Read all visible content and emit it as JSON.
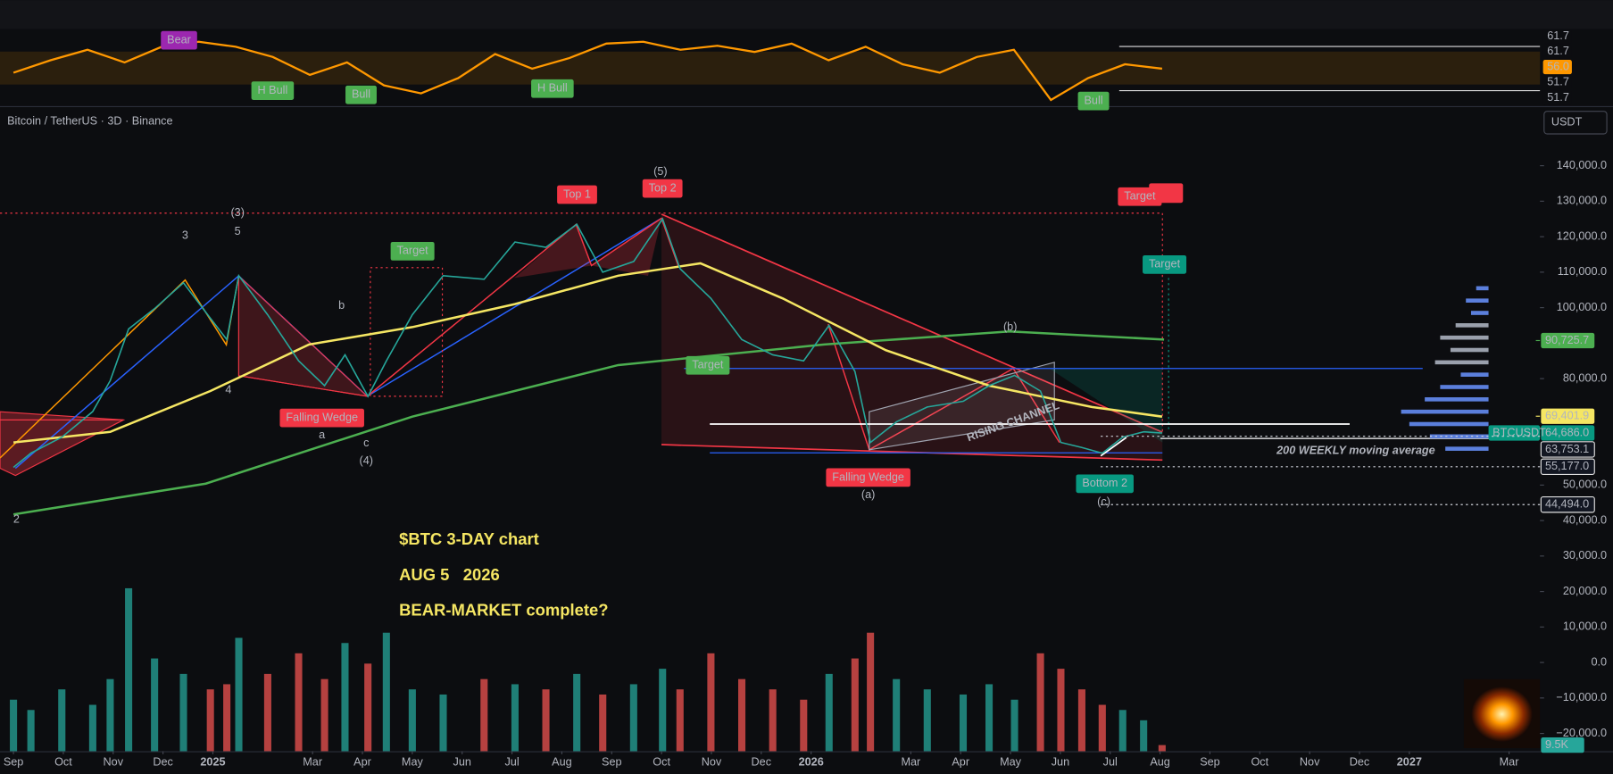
{
  "header": {
    "symbol": "Bitcoin / TetherUS · 3D · Binance",
    "currency": "USDT"
  },
  "chart_data": {
    "type": "line",
    "xlim": [
      -0.27,
      30.62
    ],
    "xticks": [
      {
        "value": 0,
        "label": "Sep"
      },
      {
        "value": 1,
        "label": "Oct"
      },
      {
        "value": 2,
        "label": "Nov"
      },
      {
        "value": 3,
        "label": "Dec"
      },
      {
        "value": 4,
        "label": "2025"
      },
      {
        "value": 6,
        "label": "Mar"
      },
      {
        "value": 7,
        "label": "Apr"
      },
      {
        "value": 8,
        "label": "May"
      },
      {
        "value": 9,
        "label": "Jun"
      },
      {
        "value": 10,
        "label": "Jul"
      },
      {
        "value": 11,
        "label": "Aug"
      },
      {
        "value": 12,
        "label": "Sep"
      },
      {
        "value": 13,
        "label": "Oct"
      },
      {
        "value": 14,
        "label": "Nov"
      },
      {
        "value": 15,
        "label": "Dec"
      },
      {
        "value": 16,
        "label": "2026"
      },
      {
        "value": 18,
        "label": "Mar"
      },
      {
        "value": 19,
        "label": "Apr"
      },
      {
        "value": 20,
        "label": "May"
      },
      {
        "value": 21,
        "label": "Jun"
      },
      {
        "value": 22,
        "label": "Jul"
      },
      {
        "value": 23,
        "label": "Aug"
      },
      {
        "value": 24,
        "label": "Sep"
      },
      {
        "value": 25,
        "label": "Oct"
      },
      {
        "value": 26,
        "label": "Nov"
      },
      {
        "value": 27,
        "label": "Dec"
      },
      {
        "value": 28,
        "label": "2027"
      },
      {
        "value": 30,
        "label": "Mar"
      }
    ],
    "ylim": [
      -25000,
      156500
    ],
    "yticks": [
      {
        "value": 140000,
        "label": "140,000.0"
      },
      {
        "value": 130000,
        "label": "130,000.0"
      },
      {
        "value": 120000,
        "label": "120,000.0"
      },
      {
        "value": 110000,
        "label": "110,000.0"
      },
      {
        "value": 100000,
        "label": "100,000.0"
      },
      {
        "value": 80000,
        "label": "80,000.0"
      },
      {
        "value": 50000,
        "label": "50,000.0"
      },
      {
        "value": 40000,
        "label": "40,000.0"
      },
      {
        "value": 30000,
        "label": "30,000.0"
      },
      {
        "value": 20000,
        "label": "20,000.0"
      },
      {
        "value": 10000,
        "label": "10,000.0"
      },
      {
        "value": 0,
        "label": "0.0"
      },
      {
        "value": -10000,
        "label": "−10,000.0"
      },
      {
        "value": -20000,
        "label": "−20,000.0"
      }
    ],
    "series": [
      {
        "name": "BTCUSDT",
        "color": "#26a69a",
        "x": [
          0,
          0.35,
          0.97,
          1.59,
          1.94,
          2.31,
          2.83,
          3.41,
          3.95,
          4.28,
          4.52,
          5.1,
          5.72,
          6.24,
          6.65,
          7.11,
          7.48,
          8.0,
          8.62,
          9.44,
          10.06,
          10.68,
          11.3,
          11.82,
          12.44,
          13.02,
          13.37,
          13.99,
          14.61,
          15.23,
          15.85,
          16.36,
          16.88,
          17.19,
          17.71,
          18.33,
          19.05,
          19.57,
          20.08,
          20.6,
          21.01,
          21.43,
          21.84,
          22.25,
          22.67,
          23.04
        ],
        "values": [
          55000,
          59000,
          63500,
          70700,
          79400,
          94000,
          99700,
          107000,
          97000,
          91000,
          109000,
          98000,
          85000,
          78000,
          86700,
          75000,
          85000,
          98000,
          109000,
          108000,
          118500,
          117000,
          123500,
          110000,
          113000,
          125000,
          111000,
          102600,
          91000,
          86700,
          85000,
          95000,
          82000,
          62000,
          67800,
          72000,
          73600,
          78000,
          80900,
          76500,
          62000,
          60600,
          59000,
          63500,
          65000,
          64686
        ]
      },
      {
        "color": "#f5e663",
        "x": [
          0,
          1.94,
          3.95,
          5.93,
          8.0,
          10.06,
          12.13,
          13.78,
          15.43,
          17.5,
          19.57,
          21.63,
          23.04
        ],
        "values": [
          62000,
          65000,
          76500,
          89600,
          94500,
          101000,
          109000,
          112500,
          102600,
          88000,
          78000,
          72000,
          69300
        ]
      },
      {
        "name": "200 WEEKLY moving average",
        "color": "#4caf50",
        "x": [
          0,
          3.86,
          8.0,
          12.13,
          16.26,
          19.98,
          23.08
        ],
        "values": [
          41700,
          50400,
          69300,
          83800,
          89600,
          93300,
          91000
        ]
      }
    ],
    "volume": {
      "y2lim": [
        0,
        1000000
      ],
      "up_color": "#26a69a",
      "down_color": "#ef5350",
      "values": [
        80000,
        64000,
        96000,
        72000,
        112000,
        253000,
        144000,
        120000,
        96000,
        104000,
        176000,
        120000,
        152000,
        112000,
        168000,
        136000,
        184000,
        96000,
        88000,
        112000,
        104000,
        96000,
        120000,
        88000,
        104000,
        128000,
        96000,
        152000,
        112000,
        96000,
        80000,
        120000,
        144000,
        184000,
        112000,
        96000,
        88000,
        104000,
        80000,
        152000,
        128000,
        96000,
        72000,
        64000,
        48000,
        9500
      ],
      "badge": {
        "value": 9500,
        "label": "9.5K"
      }
    },
    "price_badges": [
      {
        "value": 90725.7,
        "label": "90,725.7",
        "color": "#4caf50"
      },
      {
        "value": 69401.9,
        "label": "69,401.9",
        "color": "#f5e663"
      },
      {
        "value": 64686,
        "label": "64,686.0",
        "color": "#089981"
      },
      {
        "value": 63753.1,
        "label": "63,753.1",
        "color": "#131722"
      },
      {
        "value": 55177,
        "label": "55,177.0",
        "color": "#131722"
      },
      {
        "value": 44494,
        "label": "44,494.0",
        "color": "#131722"
      }
    ],
    "rsi": {
      "color": "#ff9800",
      "ylim": [
        45.4,
        66.6
      ],
      "values": [
        54.6,
        58.0,
        60.9,
        57.4,
        61.7,
        63.1,
        61.7,
        58.9,
        54.0,
        57.4,
        51.1,
        48.9,
        53.1,
        59.7,
        55.7,
        58.6,
        62.6,
        63.1,
        60.9,
        62.0,
        60.3,
        62.6,
        58.0,
        61.7,
        56.9,
        54.6,
        58.9,
        60.9,
        47.1,
        53.1,
        56.9,
        55.7
      ],
      "badges": [
        61.7,
        61.7,
        {
          "value": 56,
          "label": "56.0"
        },
        51.7,
        51.7
      ]
    },
    "annotations": [
      "Bear",
      "H Bull",
      "Bull",
      "H Bull",
      "Bull",
      "Top 1",
      "Top 2",
      "Target",
      "Target",
      "Target",
      "Target",
      "Falling Wedge",
      "Falling Wedge",
      "Bottom 2",
      "(5)",
      "(3)",
      "3",
      "5",
      "b",
      "4",
      "a",
      "c",
      "(4)",
      "2",
      "(b)",
      "(a)",
      "(c)",
      "RISING CHANNEL"
    ],
    "notes": [
      "$BTC 3-DAY chart",
      "AUG 5   2026",
      "BEAR-MARKET complete?"
    ]
  }
}
